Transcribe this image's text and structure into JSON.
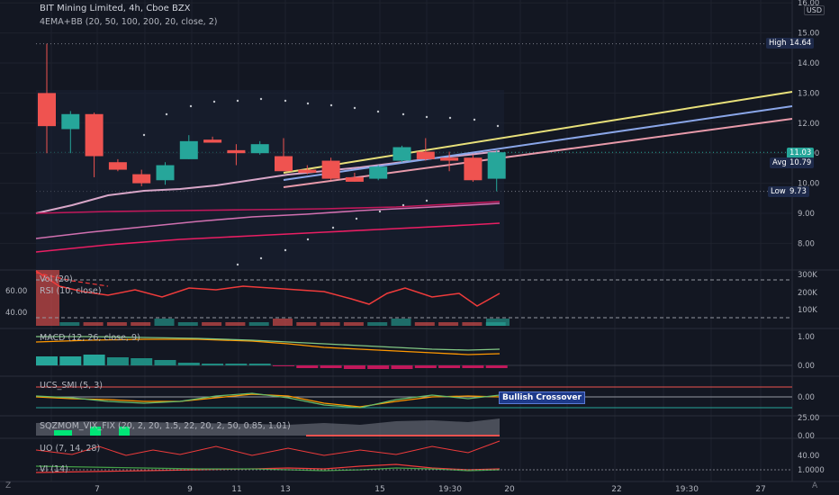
{
  "header": {
    "symbol_line": "BIT Mining Limited, 4h, Cboe BZX",
    "indicator_line": "4EMA+BB (20, 50, 100, 200, 20, close, 2)"
  },
  "currency_button": "USD",
  "price_axis": {
    "ticks": [
      "16.00",
      "15.00",
      "14.00",
      "13.00",
      "12.00",
      "11.00",
      "10.00",
      "9.00",
      "8.00"
    ]
  },
  "price_tags": {
    "high_label": "High",
    "high_value": "14.64",
    "last_value": "11.03",
    "avg_label": "Avg",
    "avg_value": "10.79",
    "low_label": "Low",
    "low_value": "9.73"
  },
  "panes": {
    "vol_label": "Vol (20)",
    "rsi_label": "RSI (10, close)",
    "rsi_ticks": [
      "60.00",
      "40.00"
    ],
    "vol_ticks": [
      "300K",
      "200K",
      "100K"
    ],
    "macd_label": "MACD (12, 26, close, 9)",
    "macd_ticks": [
      "1.00",
      "0.00"
    ],
    "smi_label": "UCS_SMI (5, 3)",
    "smi_tick": "0.00",
    "smi_badge": "Bullish Crossover",
    "vix_label": "SQZMOM_VIX_FIX (20, 2, 20, 1.5, 22, 20, 2, 50, 0.85, 1.01)",
    "vix_ticks": [
      "25.00",
      "0.00"
    ],
    "uo_label": "UO (7, 14, 28)",
    "uo_tick": "40.00",
    "vi_label": "VI (14)",
    "vi_tick": "1.0000"
  },
  "time_axis": {
    "ticks": [
      "7",
      "9",
      "11",
      "13",
      "15",
      "19:30",
      "20",
      "22",
      "19:30",
      "27"
    ]
  },
  "corners": {
    "left": "Z",
    "right": "A"
  },
  "colors": {
    "background": "#131722",
    "up": "#26a69a",
    "down": "#ef5350"
  },
  "chart_data": {
    "type": "candlestick",
    "candles": [
      {
        "o": 13.0,
        "h": 14.64,
        "l": 11.0,
        "c": 11.9
      },
      {
        "o": 11.8,
        "h": 12.4,
        "l": 11.0,
        "c": 12.3
      },
      {
        "o": 12.3,
        "h": 12.35,
        "l": 10.2,
        "c": 10.9
      },
      {
        "o": 10.7,
        "h": 10.8,
        "l": 10.4,
        "c": 10.45
      },
      {
        "o": 10.3,
        "h": 10.45,
        "l": 9.9,
        "c": 10.0
      },
      {
        "o": 10.1,
        "h": 10.7,
        "l": 9.95,
        "c": 10.6
      },
      {
        "o": 10.8,
        "h": 11.6,
        "l": 10.8,
        "c": 11.4
      },
      {
        "o": 11.45,
        "h": 11.55,
        "l": 11.35,
        "c": 11.35
      },
      {
        "o": 11.1,
        "h": 11.3,
        "l": 10.6,
        "c": 11.0
      },
      {
        "o": 11.0,
        "h": 11.4,
        "l": 10.95,
        "c": 11.3
      },
      {
        "o": 10.9,
        "h": 11.5,
        "l": 10.4,
        "c": 10.4
      },
      {
        "o": 10.45,
        "h": 10.6,
        "l": 10.3,
        "c": 10.35
      },
      {
        "o": 10.75,
        "h": 10.85,
        "l": 10.1,
        "c": 10.15
      },
      {
        "o": 10.2,
        "h": 10.35,
        "l": 10.05,
        "c": 10.05
      },
      {
        "o": 10.15,
        "h": 10.6,
        "l": 10.1,
        "c": 10.55
      },
      {
        "o": 10.75,
        "h": 11.25,
        "l": 10.7,
        "c": 11.2
      },
      {
        "o": 11.05,
        "h": 11.5,
        "l": 10.75,
        "c": 10.8
      },
      {
        "o": 10.85,
        "h": 11.05,
        "l": 10.4,
        "c": 10.75
      },
      {
        "o": 10.85,
        "h": 10.95,
        "l": 10.05,
        "c": 10.1
      },
      {
        "o": 10.15,
        "h": 11.1,
        "l": 9.73,
        "c": 11.03
      }
    ]
  }
}
